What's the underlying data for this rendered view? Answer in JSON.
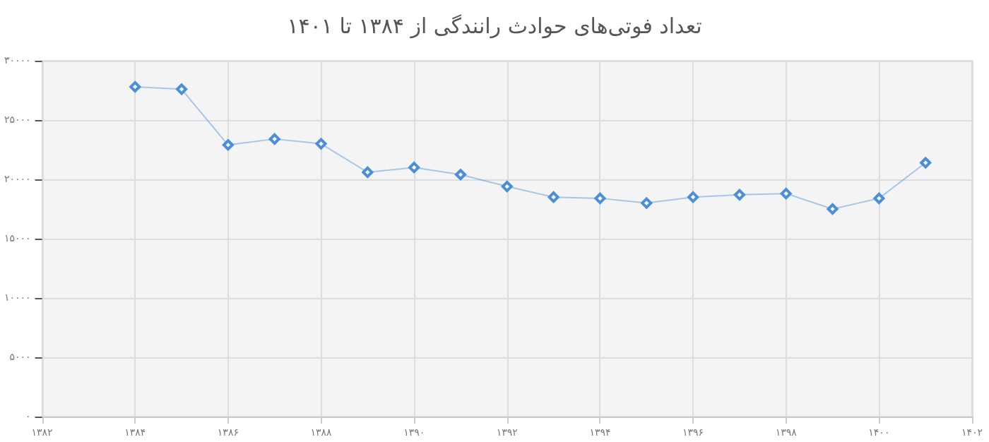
{
  "chart_data": {
    "type": "line",
    "title": "تعداد فوتی‌های حوادث رانندگی از ۱۳۸۴ تا ۱۴۰۱",
    "x": [
      1384,
      1385,
      1386,
      1387,
      1388,
      1389,
      1390,
      1391,
      1392,
      1393,
      1394,
      1395,
      1396,
      1397,
      1398,
      1399,
      1400,
      1401
    ],
    "series": [
      {
        "color": "#4a8fd8",
        "values": [
          27800,
          27600,
          22900,
          23400,
          23000,
          20600,
          21000,
          20400,
          19400,
          18500,
          18400,
          18000,
          18500,
          18700,
          18800,
          17500,
          18400,
          21400
        ]
      }
    ],
    "xlim": [
      1382,
      1402
    ],
    "xticks": [
      {
        "value": 1382,
        "label": "۱۳۸۲"
      },
      {
        "value": 1384,
        "label": "۱۳۸۴"
      },
      {
        "value": 1386,
        "label": "۱۳۸۶"
      },
      {
        "value": 1388,
        "label": "۱۳۸۸"
      },
      {
        "value": 1390,
        "label": "۱۳۹۰"
      },
      {
        "value": 1392,
        "label": "۱۳۹۲"
      },
      {
        "value": 1394,
        "label": "۱۳۹۴"
      },
      {
        "value": 1396,
        "label": "۱۳۹۶"
      },
      {
        "value": 1398,
        "label": "۱۳۹۸"
      },
      {
        "value": 1400,
        "label": "۱۴۰۰"
      },
      {
        "value": 1402,
        "label": "۱۴۰۲"
      }
    ],
    "ylim": [
      0,
      30000
    ],
    "yticks": [
      {
        "value": 0,
        "label": "۰"
      },
      {
        "value": 5000,
        "label": "۵۰۰۰"
      },
      {
        "value": 10000,
        "label": "۱۰۰۰۰"
      },
      {
        "value": 15000,
        "label": "۱۵۰۰۰"
      },
      {
        "value": 20000,
        "label": "۲۰۰۰۰"
      },
      {
        "value": 25000,
        "label": "۲۵۰۰۰"
      },
      {
        "value": 30000,
        "label": "۳۰۰۰۰"
      }
    ],
    "grid": true,
    "marker": "diamond",
    "line_style": "solid"
  }
}
